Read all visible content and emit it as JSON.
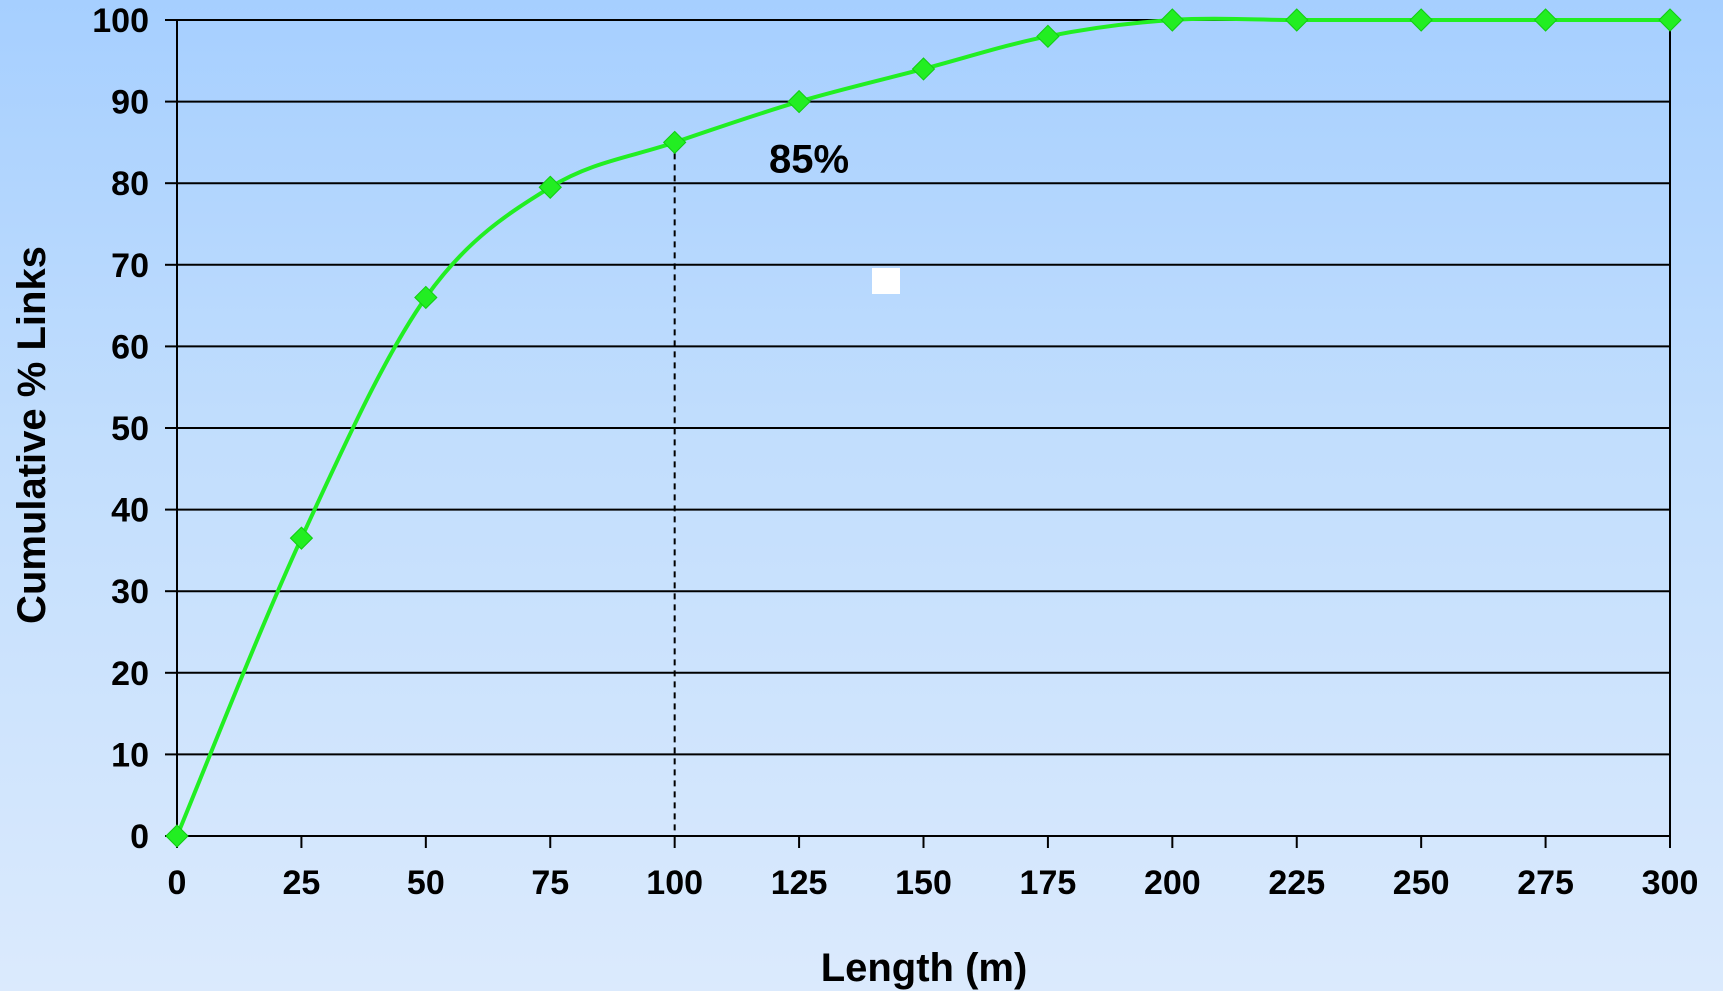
{
  "chart_data": {
    "type": "line",
    "title": "",
    "xlabel": "Length (m)",
    "ylabel": "Cumulative % Links",
    "xlim": [
      0,
      300
    ],
    "ylim": [
      0,
      100
    ],
    "x_ticks": [
      0,
      25,
      50,
      75,
      100,
      125,
      150,
      175,
      200,
      225,
      250,
      275,
      300
    ],
    "y_ticks": [
      0,
      10,
      20,
      30,
      40,
      50,
      60,
      70,
      80,
      90,
      100
    ],
    "grid": "horizontal",
    "legend": "none",
    "series": [
      {
        "color": "#22ee22",
        "marker": "diamond",
        "x": [
          0,
          25,
          50,
          75,
          100,
          125,
          150,
          175,
          200,
          225,
          250,
          275,
          300
        ],
        "y": [
          0,
          36.5,
          66,
          79.5,
          85,
          90,
          94,
          98,
          100,
          100,
          100,
          100,
          100
        ]
      }
    ],
    "annotations": [
      {
        "text": "85%",
        "x": 125,
        "y": 83
      }
    ],
    "reference_line": {
      "x": 100,
      "y": 85,
      "style": "dashed"
    }
  },
  "colors": {
    "background_top": "#a6cfff",
    "background_bottom": "#dbeafd",
    "series": "#22ee22",
    "grid": "#000000"
  }
}
